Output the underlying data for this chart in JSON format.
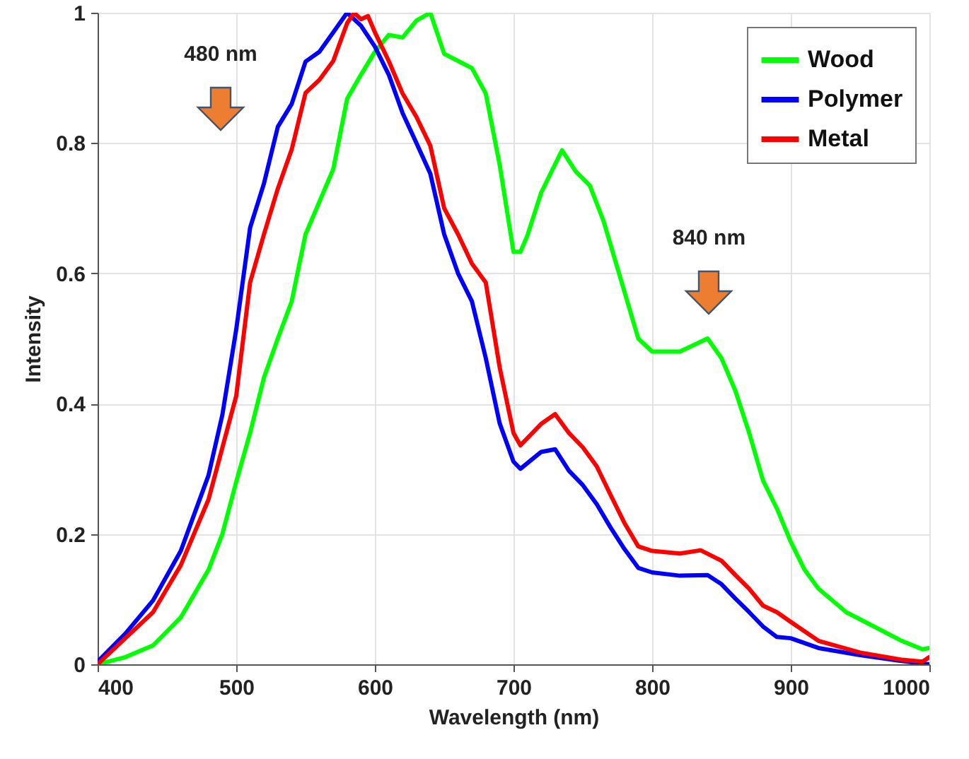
{
  "chart_data": {
    "type": "line",
    "xlabel": "Wavelength (nm)",
    "ylabel": "Intensity",
    "xlim": [
      400,
      1000
    ],
    "ylim": [
      0,
      1
    ],
    "xticks": [
      400,
      500,
      600,
      700,
      800,
      900,
      1000
    ],
    "yticks": [
      0,
      0.2,
      0.4,
      0.6,
      0.8,
      1
    ],
    "grid": true,
    "legend": "top right",
    "line_style": "solid",
    "marker": "none",
    "annotations": [
      "480 nm",
      "840 nm"
    ],
    "series": [
      {
        "name": "Wood",
        "color": "#00ff00",
        "x": [
          400,
          420,
          440,
          460,
          480,
          490,
          500,
          510,
          520,
          530,
          540,
          550,
          560,
          570,
          580,
          590,
          600,
          610,
          620,
          630,
          640,
          650,
          660,
          670,
          680,
          690,
          700,
          705,
          710,
          720,
          735,
          745,
          755,
          765,
          775,
          790,
          800,
          820,
          840,
          850,
          860,
          870,
          880,
          890,
          900,
          910,
          920,
          940,
          960,
          980,
          995,
          1000
        ],
        "values": [
          0,
          0.011,
          0.029,
          0.072,
          0.145,
          0.2,
          0.28,
          0.355,
          0.44,
          0.5,
          0.557,
          0.66,
          0.71,
          0.76,
          0.868,
          0.905,
          0.94,
          0.966,
          0.962,
          0.988,
          1.0,
          0.937,
          0.926,
          0.915,
          0.876,
          0.767,
          0.633,
          0.633,
          0.658,
          0.724,
          0.789,
          0.756,
          0.735,
          0.68,
          0.608,
          0.5,
          0.48,
          0.48,
          0.5,
          0.47,
          0.42,
          0.355,
          0.282,
          0.239,
          0.188,
          0.145,
          0.116,
          0.08,
          0.058,
          0.036,
          0.023,
          0.025
        ]
      },
      {
        "name": "Polymer",
        "color": "#0000ff",
        "x": [
          400,
          420,
          440,
          460,
          480,
          490,
          500,
          510,
          520,
          530,
          540,
          550,
          560,
          570,
          580,
          590,
          600,
          610,
          620,
          630,
          640,
          650,
          660,
          670,
          680,
          690,
          700,
          705,
          720,
          730,
          740,
          750,
          760,
          770,
          780,
          790,
          800,
          820,
          840,
          850,
          860,
          870,
          880,
          890,
          900,
          920,
          950,
          980,
          1000
        ],
        "values": [
          0.004,
          0.047,
          0.098,
          0.174,
          0.29,
          0.383,
          0.514,
          0.67,
          0.738,
          0.825,
          0.86,
          0.925,
          0.94,
          0.97,
          1.0,
          0.98,
          0.948,
          0.905,
          0.846,
          0.8,
          0.753,
          0.66,
          0.6,
          0.557,
          0.47,
          0.37,
          0.311,
          0.3,
          0.326,
          0.33,
          0.297,
          0.275,
          0.246,
          0.21,
          0.177,
          0.148,
          0.141,
          0.136,
          0.137,
          0.123,
          0.101,
          0.08,
          0.058,
          0.042,
          0.04,
          0.025,
          0.014,
          0.005,
          0
        ]
      },
      {
        "name": "Metal",
        "color": "#ff0000",
        "x": [
          400,
          420,
          440,
          460,
          480,
          500,
          510,
          520,
          530,
          540,
          550,
          560,
          570,
          580,
          585,
          590,
          595,
          600,
          610,
          620,
          630,
          640,
          650,
          660,
          670,
          680,
          690,
          700,
          705,
          720,
          730,
          740,
          750,
          760,
          770,
          780,
          790,
          800,
          820,
          835,
          850,
          860,
          870,
          880,
          890,
          900,
          920,
          950,
          980,
          995,
          1000
        ],
        "values": [
          0,
          0.04,
          0.08,
          0.152,
          0.253,
          0.412,
          0.586,
          0.66,
          0.73,
          0.79,
          0.877,
          0.897,
          0.926,
          0.984,
          1.0,
          0.99,
          0.995,
          0.97,
          0.926,
          0.876,
          0.84,
          0.796,
          0.7,
          0.66,
          0.615,
          0.586,
          0.456,
          0.355,
          0.336,
          0.369,
          0.384,
          0.355,
          0.333,
          0.304,
          0.26,
          0.217,
          0.181,
          0.174,
          0.17,
          0.175,
          0.159,
          0.137,
          0.116,
          0.09,
          0.08,
          0.065,
          0.036,
          0.018,
          0.007,
          0.004,
          0.011
        ]
      }
    ]
  }
}
